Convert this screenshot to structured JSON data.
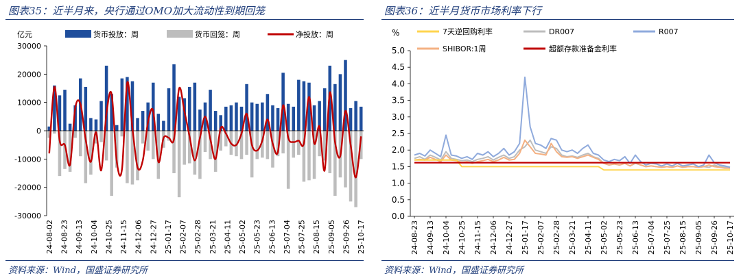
{
  "left": {
    "title": "图表35：近半月来，央行通过OMO加大流动性到期回笼",
    "source": "资料来源：Wind，国盛证券研究所",
    "chart_data": {
      "type": "bar",
      "unit_label": "亿元",
      "ylim": [
        -30000,
        30000
      ],
      "yticks": [
        30000,
        20000,
        10000,
        0,
        -10000,
        -20000,
        -30000
      ],
      "tick_labels": [
        "24-08-02",
        "24-08-23",
        "24-09-13",
        "24-10-04",
        "24-10-25",
        "24-11-15",
        "24-12-06",
        "24-12-27",
        "25-01-17",
        "25-02-07",
        "25-02-28",
        "25-03-21",
        "25-04-11",
        "25-05-02",
        "25-05-23",
        "25-06-13",
        "25-07-04",
        "25-07-25",
        "25-08-15",
        "25-09-05",
        "25-09-26",
        "25-10-17"
      ],
      "legend": [
        "货币投放：周",
        "货币回笼：周",
        "净投放：周"
      ],
      "colors": {
        "injection": "#1f4e9c",
        "withdrawal": "#bdbdbd",
        "net": "#c00000"
      },
      "injection": [
        1500,
        16000,
        12500,
        14500,
        2500,
        9000,
        18500,
        15500,
        4500,
        4000,
        10500,
        23000,
        13000,
        2000,
        18500,
        19000,
        17500,
        4500,
        7000,
        10000,
        17000,
        6000,
        3500,
        15000,
        23500,
        12000,
        11500,
        15500,
        17000,
        7500,
        10000,
        14500,
        7000,
        5500,
        8500,
        9000,
        10000,
        8500,
        16500,
        10000,
        9500,
        10000,
        13000,
        9000,
        8000,
        20500,
        9500,
        8500,
        18000,
        17500,
        17000,
        9000,
        10500,
        15000,
        23000,
        16500,
        20000,
        25000,
        8000,
        10500,
        8500
      ],
      "withdrawal": [
        -2500,
        -1000,
        -16000,
        -13500,
        -14500,
        -2500,
        -9000,
        -18500,
        -15500,
        -4500,
        -4000,
        -10500,
        -23000,
        -13000,
        -2000,
        -18500,
        -19000,
        -17500,
        -4500,
        -7000,
        -10000,
        -17000,
        -6000,
        -3500,
        -15000,
        -23500,
        -12000,
        -11500,
        -15500,
        -17000,
        -7500,
        -10000,
        -14500,
        -7000,
        -5500,
        -8500,
        -9000,
        -10000,
        -8500,
        -16500,
        -10000,
        -9500,
        -10000,
        -13000,
        -9000,
        -8000,
        -20500,
        -9500,
        -8500,
        -18000,
        -17500,
        -17000,
        -9000,
        -10500,
        -15000,
        -23000,
        -16500,
        -20000,
        -25000,
        -27000,
        -10000
      ],
      "net": [
        -8000,
        15500,
        -3500,
        -5000,
        -12000,
        8000,
        9500,
        -3000,
        -11000,
        -500,
        -14000,
        6000,
        13000,
        -11000,
        -13500,
        17000,
        1000,
        -13000,
        -10500,
        3000,
        7000,
        -11000,
        -2500,
        -2500,
        -3000,
        15000,
        7000,
        -2000,
        -10500,
        -2500,
        5000,
        -3000,
        -10000,
        1000,
        -1000,
        -4500,
        -5000,
        -1000,
        6000,
        -5000,
        -7000,
        -3500,
        4000,
        -4500,
        -7500,
        9000,
        -2500,
        -4000,
        -3500,
        -4500,
        12000,
        -4500,
        1500,
        -14000,
        13500,
        -4000,
        -9000,
        7000,
        -5000,
        -16500,
        -2000
      ]
    }
  },
  "right": {
    "title": "图表36：近半月货币市场利率下行",
    "source": "资料来源：Wind，国盛证券研究所",
    "chart_data": {
      "type": "line",
      "unit_label": "%",
      "ylim": [
        0,
        5.0
      ],
      "yticks": [
        "5.0",
        "4.5",
        "4.0",
        "3.5",
        "3.0",
        "2.5",
        "2.0",
        "1.5",
        "1.0",
        "0.5",
        "0.0"
      ],
      "tick_labels": [
        "24-08-23",
        "24-09-13",
        "24-10-04",
        "24-10-25",
        "24-11-15",
        "24-12-06",
        "24-12-27",
        "25-01-17",
        "25-02-07",
        "25-02-28",
        "25-03-21",
        "25-04-11",
        "25-05-02",
        "25-05-23",
        "25-06-13",
        "25-07-04",
        "25-07-25",
        "25-08-15",
        "25-09-05",
        "25-09-26",
        "25-10-17"
      ],
      "series": [
        {
          "name": "7天逆回购利率",
          "color": "#ffd54f",
          "values": [
            1.7,
            1.7,
            1.7,
            1.7,
            1.7,
            1.7,
            1.7,
            1.7,
            1.7,
            1.5,
            1.5,
            1.5,
            1.5,
            1.5,
            1.5,
            1.5,
            1.5,
            1.5,
            1.5,
            1.5,
            1.5,
            1.5,
            1.5,
            1.5,
            1.5,
            1.5,
            1.5,
            1.5,
            1.5,
            1.5,
            1.5,
            1.5,
            1.5,
            1.5,
            1.5,
            1.5,
            1.4,
            1.4,
            1.4,
            1.4,
            1.4,
            1.4,
            1.4,
            1.4,
            1.4,
            1.4,
            1.4,
            1.4,
            1.4,
            1.4,
            1.4,
            1.4,
            1.4,
            1.4,
            1.4,
            1.4,
            1.4,
            1.4,
            1.4,
            1.4,
            1.4
          ]
        },
        {
          "name": "DR007",
          "color": "#bdbdbd",
          "values": [
            1.75,
            1.8,
            1.72,
            1.85,
            1.78,
            1.7,
            1.95,
            1.75,
            1.72,
            1.68,
            1.7,
            1.65,
            1.72,
            1.75,
            1.8,
            1.7,
            1.78,
            1.85,
            1.75,
            1.8,
            2.0,
            2.1,
            2.3,
            2.0,
            1.95,
            1.9,
            2.1,
            2.05,
            1.85,
            1.8,
            1.82,
            1.78,
            1.85,
            1.9,
            1.8,
            1.75,
            1.6,
            1.55,
            1.58,
            1.55,
            1.6,
            1.52,
            1.6,
            1.55,
            1.5,
            1.52,
            1.5,
            1.48,
            1.5,
            1.48,
            1.52,
            1.48,
            1.5,
            1.5,
            1.48,
            1.5,
            1.48,
            1.55,
            1.5,
            1.48,
            1.45
          ]
        },
        {
          "name": "R007",
          "color": "#8faadc",
          "values": [
            1.85,
            1.9,
            1.82,
            2.0,
            1.9,
            1.8,
            2.45,
            1.85,
            1.82,
            1.75,
            1.8,
            1.72,
            1.9,
            1.85,
            1.95,
            1.8,
            1.9,
            2.05,
            1.85,
            1.95,
            2.2,
            4.2,
            2.7,
            2.2,
            2.15,
            2.05,
            2.35,
            2.3,
            2.0,
            1.95,
            2.0,
            1.9,
            2.05,
            2.15,
            1.9,
            1.85,
            1.7,
            1.65,
            1.72,
            1.68,
            1.8,
            1.6,
            1.85,
            1.65,
            1.55,
            1.6,
            1.58,
            1.52,
            1.58,
            1.52,
            1.6,
            1.52,
            1.55,
            1.58,
            1.5,
            1.55,
            1.85,
            1.62,
            1.55,
            1.52,
            1.48
          ]
        },
        {
          "name": "SHIBOR:1周",
          "color": "#f4b183",
          "values": [
            1.7,
            1.72,
            1.7,
            1.78,
            1.72,
            1.65,
            1.85,
            1.7,
            1.68,
            1.62,
            1.65,
            1.6,
            1.65,
            1.68,
            1.72,
            1.65,
            1.7,
            1.78,
            1.7,
            1.72,
            1.9,
            2.3,
            2.1,
            1.9,
            1.88,
            1.85,
            2.2,
            1.95,
            1.8,
            1.78,
            1.8,
            1.75,
            1.8,
            1.85,
            1.78,
            1.72,
            1.6,
            1.55,
            1.58,
            1.55,
            1.6,
            1.52,
            1.62,
            1.55,
            1.5,
            1.52,
            1.5,
            1.48,
            1.5,
            1.48,
            1.52,
            1.48,
            1.5,
            1.5,
            1.48,
            1.5,
            1.55,
            1.5,
            1.48,
            1.45,
            1.45
          ]
        },
        {
          "name": "超额存款准备金利率",
          "color": "#c00000",
          "values": [
            1.62,
            1.62,
            1.62,
            1.62,
            1.62,
            1.62,
            1.62,
            1.62,
            1.62,
            1.62,
            1.62,
            1.62,
            1.62,
            1.62,
            1.62,
            1.62,
            1.62,
            1.62,
            1.62,
            1.62,
            1.62,
            1.62,
            1.62,
            1.62,
            1.62,
            1.62,
            1.62,
            1.62,
            1.62,
            1.62,
            1.62,
            1.62,
            1.62,
            1.62,
            1.62,
            1.62,
            1.62,
            1.62,
            1.62,
            1.62,
            1.62,
            1.62,
            1.62,
            1.62,
            1.62,
            1.62,
            1.62,
            1.62,
            1.62,
            1.62,
            1.62,
            1.62,
            1.62,
            1.62,
            1.62,
            1.62,
            1.62,
            1.62,
            1.62,
            1.62,
            1.62
          ]
        }
      ]
    }
  }
}
